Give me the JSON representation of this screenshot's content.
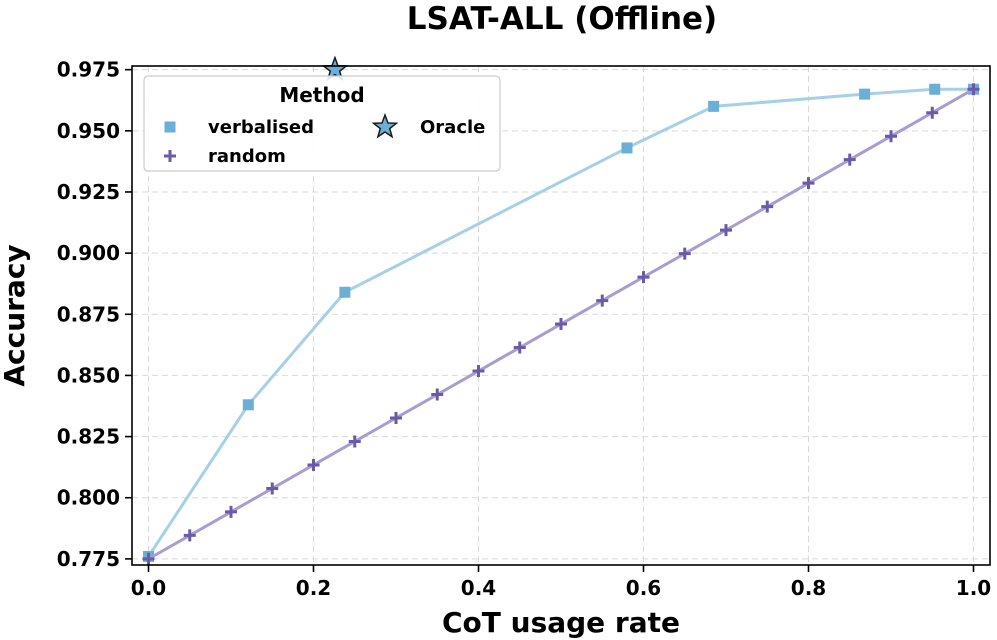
{
  "chart_data": {
    "type": "line",
    "title": "LSAT-ALL (Offline)",
    "xlabel": "CoT usage rate",
    "ylabel": "Accuracy",
    "xlim": [
      -0.02,
      1.02
    ],
    "ylim": [
      0.7725,
      0.9765
    ],
    "xticks": [
      0.0,
      0.2,
      0.4,
      0.6,
      0.8,
      1.0
    ],
    "xtick_labels": [
      "0.0",
      "0.2",
      "0.4",
      "0.6",
      "0.8",
      "1.0"
    ],
    "yticks": [
      0.775,
      0.8,
      0.825,
      0.85,
      0.875,
      0.9,
      0.925,
      0.95,
      0.975
    ],
    "ytick_labels": [
      "0.775",
      "0.800",
      "0.825",
      "0.850",
      "0.875",
      "0.900",
      "0.925",
      "0.950",
      "0.975"
    ],
    "grid": true,
    "legend": {
      "title": "Method",
      "placement": "top-left",
      "entries": [
        "verbalised",
        "random",
        "Oracle"
      ]
    },
    "series": [
      {
        "name": "verbalised",
        "marker": "square",
        "line_color": "#a6d0e6",
        "marker_color": "#6baed6",
        "x": [
          0.0,
          0.121,
          0.238,
          0.58,
          0.685,
          0.868,
          0.953,
          1.0
        ],
        "y": [
          0.776,
          0.838,
          0.884,
          0.943,
          0.96,
          0.965,
          0.967,
          0.967
        ]
      },
      {
        "name": "random",
        "marker": "plus",
        "line_color": "#a89cd0",
        "marker_color": "#6a5aa8",
        "x": [
          0.0,
          0.05,
          0.1,
          0.15,
          0.2,
          0.25,
          0.3,
          0.35,
          0.4,
          0.45,
          0.5,
          0.55,
          0.6,
          0.65,
          0.7,
          0.75,
          0.8,
          0.85,
          0.9,
          0.95,
          1.0
        ],
        "y": [
          0.775,
          0.7846,
          0.7942,
          0.8038,
          0.8134,
          0.823,
          0.8326,
          0.8422,
          0.8518,
          0.8614,
          0.871,
          0.8806,
          0.8902,
          0.8998,
          0.9094,
          0.919,
          0.9286,
          0.9382,
          0.9478,
          0.9574,
          0.967
        ]
      }
    ],
    "oracle": {
      "name": "Oracle",
      "marker": "star",
      "color": "#6baed6",
      "x": 0.226,
      "y": 0.975
    }
  }
}
